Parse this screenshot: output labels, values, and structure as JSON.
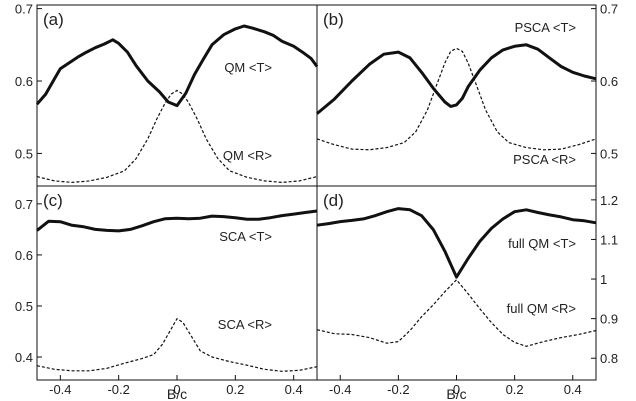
{
  "chart_data": [
    {
      "type": "line",
      "panel": "(a)",
      "xlim": [
        -0.48,
        0.48
      ],
      "ylim": [
        0.455,
        0.705
      ],
      "yticks": [
        0.5,
        0.6,
        0.7
      ],
      "ytick_labels": [
        "0.5",
        "0.6",
        "0.7"
      ],
      "y_axis_side": "left",
      "xticks": [],
      "series": [
        {
          "name": "QM  <T>",
          "style": "solid",
          "x": [
            -0.48,
            -0.45,
            -0.42,
            -0.4,
            -0.37,
            -0.34,
            -0.31,
            -0.28,
            -0.25,
            -0.22,
            -0.2,
            -0.17,
            -0.14,
            -0.1,
            -0.06,
            -0.03,
            0.0,
            0.03,
            0.06,
            0.09,
            0.12,
            0.16,
            0.2,
            0.23,
            0.26,
            0.3,
            0.33,
            0.36,
            0.4,
            0.43,
            0.46,
            0.48
          ],
          "y": [
            0.568,
            0.582,
            0.603,
            0.617,
            0.625,
            0.633,
            0.64,
            0.646,
            0.651,
            0.657,
            0.652,
            0.64,
            0.621,
            0.6,
            0.585,
            0.571,
            0.566,
            0.583,
            0.609,
            0.63,
            0.65,
            0.664,
            0.672,
            0.676,
            0.673,
            0.668,
            0.663,
            0.655,
            0.648,
            0.64,
            0.631,
            0.62
          ]
        },
        {
          "name": "QM  <R>",
          "style": "dashed",
          "x": [
            -0.48,
            -0.42,
            -0.36,
            -0.3,
            -0.24,
            -0.18,
            -0.14,
            -0.1,
            -0.07,
            -0.04,
            -0.02,
            0.0,
            0.02,
            0.04,
            0.07,
            0.1,
            0.14,
            0.18,
            0.24,
            0.3,
            0.36,
            0.42,
            0.48
          ],
          "y": [
            0.468,
            0.462,
            0.46,
            0.462,
            0.467,
            0.476,
            0.493,
            0.52,
            0.547,
            0.57,
            0.582,
            0.587,
            0.582,
            0.57,
            0.547,
            0.52,
            0.493,
            0.476,
            0.467,
            0.462,
            0.46,
            0.462,
            0.468
          ]
        }
      ]
    },
    {
      "type": "line",
      "panel": "(b)",
      "xlim": [
        -0.48,
        0.48
      ],
      "ylim": [
        0.455,
        0.705
      ],
      "yticks": [
        0.5,
        0.6,
        0.7
      ],
      "ytick_labels": [
        "0.5",
        "0.6",
        "0.7"
      ],
      "y_axis_side": "right",
      "xticks": [],
      "series": [
        {
          "name": "PSCA  <T>",
          "style": "solid",
          "x": [
            -0.48,
            -0.42,
            -0.36,
            -0.3,
            -0.25,
            -0.2,
            -0.16,
            -0.12,
            -0.08,
            -0.04,
            -0.02,
            0.0,
            0.02,
            0.04,
            0.08,
            0.12,
            0.16,
            0.2,
            0.24,
            0.28,
            0.32,
            0.36,
            0.4,
            0.44,
            0.48
          ],
          "y": [
            0.555,
            0.575,
            0.6,
            0.623,
            0.637,
            0.64,
            0.632,
            0.612,
            0.59,
            0.571,
            0.565,
            0.567,
            0.576,
            0.592,
            0.615,
            0.632,
            0.643,
            0.648,
            0.65,
            0.644,
            0.632,
            0.62,
            0.612,
            0.607,
            0.603
          ]
        },
        {
          "name": "PSCA  <R>",
          "style": "dashed",
          "x": [
            -0.48,
            -0.42,
            -0.36,
            -0.3,
            -0.24,
            -0.18,
            -0.14,
            -0.1,
            -0.07,
            -0.04,
            -0.02,
            0.0,
            0.02,
            0.04,
            0.07,
            0.1,
            0.14,
            0.18,
            0.24,
            0.3,
            0.36,
            0.42,
            0.48
          ],
          "y": [
            0.52,
            0.512,
            0.506,
            0.505,
            0.508,
            0.515,
            0.53,
            0.56,
            0.593,
            0.625,
            0.641,
            0.645,
            0.641,
            0.625,
            0.593,
            0.56,
            0.53,
            0.515,
            0.508,
            0.505,
            0.506,
            0.512,
            0.52
          ]
        }
      ]
    },
    {
      "type": "line",
      "panel": "(c)",
      "xlim": [
        -0.48,
        0.48
      ],
      "ylim": [
        0.355,
        0.735
      ],
      "yticks": [
        0.4,
        0.5,
        0.6,
        0.7
      ],
      "ytick_labels": [
        "0.4",
        "0.5",
        "0.6",
        "0.7"
      ],
      "y_axis_side": "left",
      "xticks": [
        -0.4,
        -0.2,
        0,
        0.2,
        0.4
      ],
      "xtick_labels": [
        "-0.4",
        "-0.2",
        "0",
        "0.2",
        "0.4"
      ],
      "xlabel": "B/c",
      "series": [
        {
          "name": "SCA  <T>",
          "style": "solid",
          "x": [
            -0.48,
            -0.44,
            -0.4,
            -0.36,
            -0.32,
            -0.28,
            -0.24,
            -0.2,
            -0.16,
            -0.12,
            -0.08,
            -0.04,
            0.0,
            0.04,
            0.08,
            0.12,
            0.16,
            0.2,
            0.24,
            0.28,
            0.32,
            0.36,
            0.4,
            0.44,
            0.48
          ],
          "y": [
            0.648,
            0.666,
            0.665,
            0.658,
            0.655,
            0.65,
            0.648,
            0.647,
            0.65,
            0.657,
            0.665,
            0.671,
            0.672,
            0.671,
            0.672,
            0.676,
            0.675,
            0.673,
            0.67,
            0.67,
            0.673,
            0.677,
            0.68,
            0.683,
            0.686
          ]
        },
        {
          "name": "SCA  <R>",
          "style": "dashed",
          "x": [
            -0.48,
            -0.42,
            -0.36,
            -0.3,
            -0.24,
            -0.18,
            -0.12,
            -0.08,
            -0.05,
            -0.02,
            0.0,
            0.02,
            0.05,
            0.08,
            0.12,
            0.18,
            0.24,
            0.3,
            0.36,
            0.42,
            0.48
          ],
          "y": [
            0.383,
            0.376,
            0.373,
            0.373,
            0.378,
            0.388,
            0.397,
            0.405,
            0.425,
            0.455,
            0.475,
            0.468,
            0.44,
            0.412,
            0.4,
            0.391,
            0.384,
            0.376,
            0.372,
            0.374,
            0.381
          ]
        }
      ]
    },
    {
      "type": "line",
      "panel": "(d)",
      "xlim": [
        -0.48,
        0.48
      ],
      "ylim": [
        0.745,
        1.235
      ],
      "yticks": [
        0.8,
        0.9,
        1.0,
        1.1,
        1.2
      ],
      "ytick_labels": [
        "0.8",
        "0.9",
        "1",
        "1.1",
        "1.2"
      ],
      "y_axis_side": "right",
      "xticks": [
        -0.4,
        -0.2,
        0,
        0.2,
        0.4
      ],
      "xtick_labels": [
        "-0.4",
        "-0.2",
        "0",
        "0.2",
        "0.4"
      ],
      "xlabel": "B/c",
      "series": [
        {
          "name": "full QM  <T>",
          "style": "solid",
          "x": [
            -0.48,
            -0.44,
            -0.4,
            -0.36,
            -0.32,
            -0.28,
            -0.24,
            -0.2,
            -0.16,
            -0.12,
            -0.08,
            -0.04,
            0.0,
            0.04,
            0.08,
            0.12,
            0.16,
            0.2,
            0.24,
            0.28,
            0.32,
            0.36,
            0.4,
            0.44,
            0.48
          ],
          "y": [
            1.136,
            1.14,
            1.145,
            1.148,
            1.152,
            1.16,
            1.17,
            1.178,
            1.175,
            1.16,
            1.125,
            1.07,
            1.005,
            1.052,
            1.095,
            1.128,
            1.152,
            1.17,
            1.175,
            1.168,
            1.162,
            1.157,
            1.15,
            1.147,
            1.142
          ]
        },
        {
          "name": "full QM  <R>",
          "style": "dashed",
          "x": [
            -0.48,
            -0.42,
            -0.36,
            -0.3,
            -0.24,
            -0.2,
            -0.16,
            -0.12,
            -0.08,
            -0.04,
            0.0,
            0.04,
            0.08,
            0.12,
            0.16,
            0.2,
            0.24,
            0.3,
            0.36,
            0.42,
            0.48
          ],
          "y": [
            0.872,
            0.862,
            0.86,
            0.852,
            0.838,
            0.842,
            0.87,
            0.905,
            0.935,
            0.968,
            0.998,
            0.963,
            0.925,
            0.89,
            0.86,
            0.84,
            0.83,
            0.842,
            0.852,
            0.86,
            0.87
          ]
        }
      ]
    }
  ]
}
